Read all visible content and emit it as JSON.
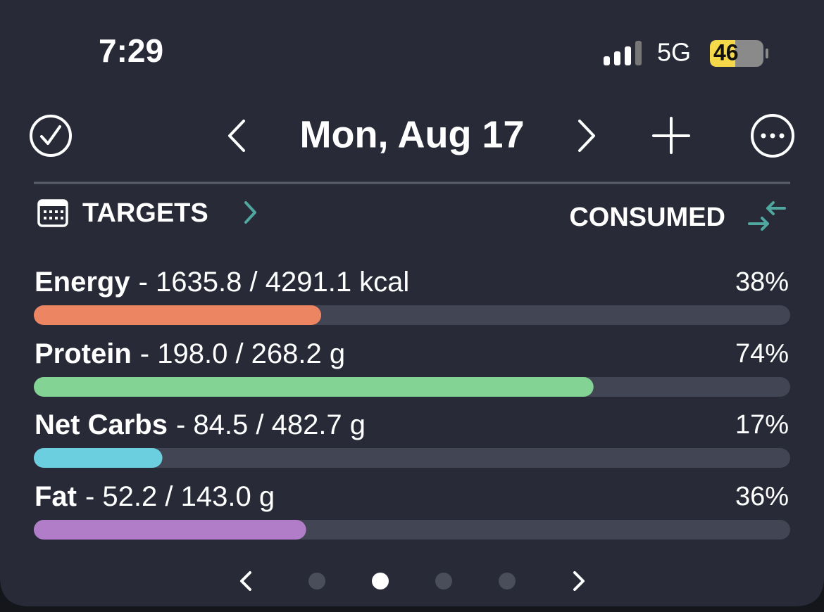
{
  "status_bar": {
    "time": "7:29",
    "network": "5G",
    "battery": "46"
  },
  "header": {
    "date": "Mon, Aug 17"
  },
  "tabs": {
    "left": "TARGETS",
    "right": "CONSUMED"
  },
  "macros": [
    {
      "name": "Energy",
      "detail": "- 1635.8 / 4291.1 kcal",
      "percent": 38,
      "percent_label": "38%",
      "color": "#ec8561"
    },
    {
      "name": "Protein",
      "detail": "- 198.0 / 268.2 g",
      "percent": 74,
      "percent_label": "74%",
      "color": "#83d394"
    },
    {
      "name": "Net Carbs",
      "detail": "- 84.5 / 482.7 g",
      "percent": 17,
      "percent_label": "17%",
      "color": "#6ccfdf"
    },
    {
      "name": "Fat",
      "detail": "- 52.2 / 143.0 g",
      "percent": 36,
      "percent_label": "36%",
      "color": "#b17dc8"
    }
  ]
}
